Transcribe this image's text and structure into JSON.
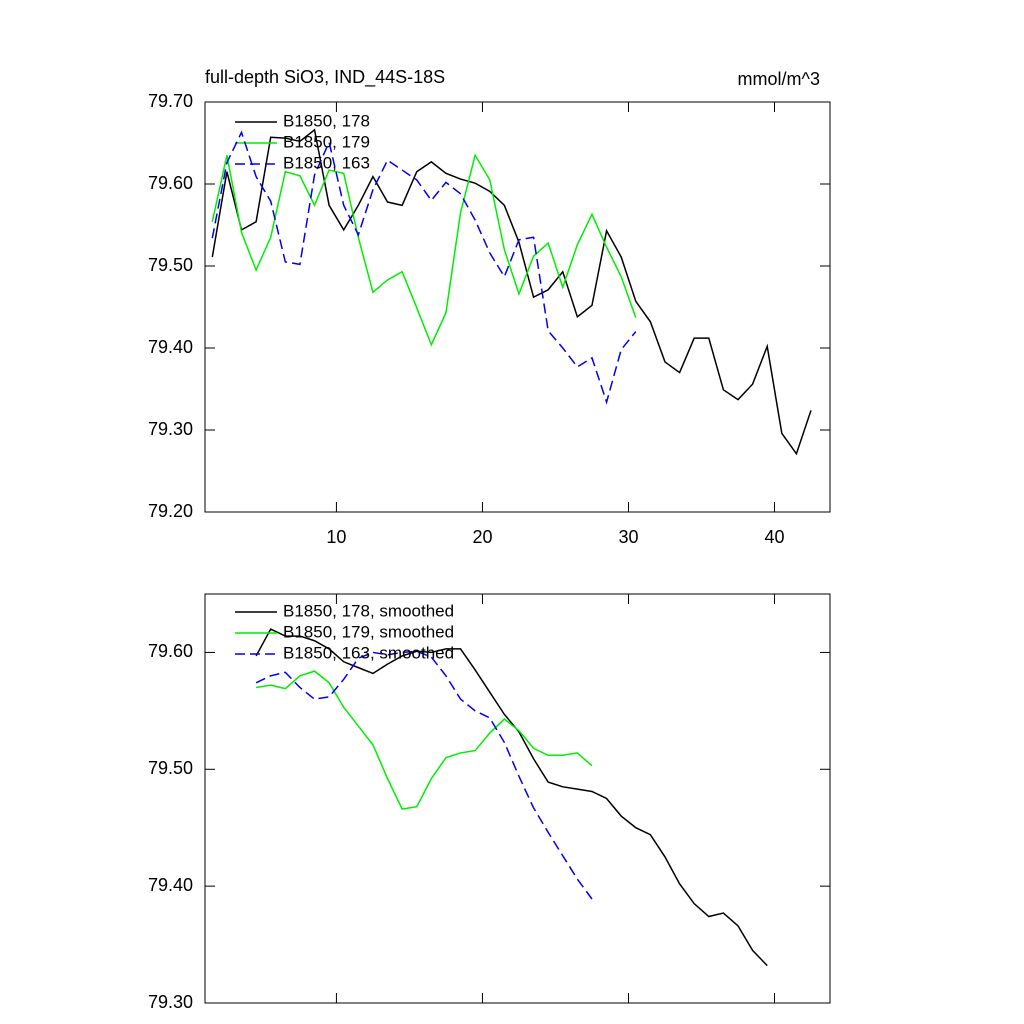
{
  "chart_data": [
    {
      "type": "line",
      "title": "full-depth SiO3, IND_44S-18S",
      "units": "mmol/m^3",
      "xlim": [
        1,
        43.8
      ],
      "xticks": [
        10,
        20,
        30,
        40
      ],
      "ylim": [
        79.2,
        79.7
      ],
      "yticks": [
        {
          "value": 79.2,
          "label": "79.20"
        },
        {
          "value": 79.3,
          "label": "79.30"
        },
        {
          "value": 79.4,
          "label": "79.40"
        },
        {
          "value": 79.5,
          "label": "79.50"
        },
        {
          "value": 79.6,
          "label": "79.60"
        },
        {
          "value": 79.7,
          "label": "79.70"
        }
      ],
      "series": [
        {
          "name": "B1850, 178",
          "color": "#000000",
          "dash": false,
          "x": [
            1.5,
            2.5,
            3.5,
            4.5,
            5.5,
            6.5,
            7.5,
            8.5,
            9.5,
            10.5,
            11.5,
            12.5,
            13.5,
            14.5,
            15.5,
            16.5,
            17.5,
            18.5,
            19.5,
            20.5,
            21.5,
            22.5,
            23.5,
            24.5,
            25.5,
            26.5,
            27.5,
            28.5,
            29.5,
            30.5,
            31.5,
            32.5,
            33.5,
            34.5,
            35.5,
            36.5,
            37.5,
            38.5,
            39.5,
            40.5,
            41.5,
            42.5
          ],
          "values": [
            79.511,
            79.615,
            79.544,
            79.554,
            79.657,
            79.656,
            79.652,
            79.666,
            79.574,
            79.544,
            79.574,
            79.609,
            79.578,
            79.574,
            79.615,
            79.627,
            79.613,
            79.606,
            79.601,
            79.591,
            79.574,
            79.529,
            79.462,
            79.471,
            79.493,
            79.438,
            79.452,
            79.543,
            79.511,
            79.457,
            79.432,
            79.383,
            79.37,
            79.412,
            79.412,
            79.349,
            79.337,
            79.356,
            79.402,
            79.296,
            79.271,
            79.324
          ]
        },
        {
          "name": "B1850, 179",
          "color": "#00ee00",
          "dash": false,
          "x": [
            1.5,
            2.5,
            3.5,
            4.5,
            5.5,
            6.5,
            7.5,
            8.5,
            9.5,
            10.5,
            11.5,
            12.5,
            13.5,
            14.5,
            15.5,
            16.5,
            17.5,
            18.5,
            19.5,
            20.5,
            21.5,
            22.5,
            23.5,
            24.5,
            25.5,
            26.5,
            27.5,
            28.5,
            29.5,
            30.5
          ],
          "values": [
            79.554,
            79.635,
            79.541,
            79.495,
            79.535,
            79.615,
            79.61,
            79.574,
            79.617,
            79.613,
            79.535,
            79.468,
            79.483,
            79.493,
            79.449,
            79.404,
            79.443,
            79.565,
            79.635,
            79.605,
            79.52,
            79.466,
            79.512,
            79.528,
            79.474,
            79.526,
            79.563,
            79.523,
            79.487,
            79.437
          ]
        },
        {
          "name": "B1850, 163",
          "color": "#0000ee",
          "dash": true,
          "x": [
            1.5,
            2.5,
            3.5,
            4.5,
            5.5,
            6.5,
            7.5,
            8.5,
            9.5,
            10.5,
            11.5,
            12.5,
            13.5,
            14.5,
            15.5,
            16.5,
            17.5,
            18.5,
            19.5,
            20.5,
            21.5,
            22.5,
            23.5,
            24.5,
            25.5,
            26.5,
            27.5,
            28.5,
            29.5,
            30.5
          ],
          "values": [
            79.534,
            79.626,
            79.663,
            79.609,
            79.579,
            79.505,
            79.502,
            79.611,
            79.651,
            79.574,
            79.538,
            79.593,
            79.629,
            79.617,
            79.605,
            79.58,
            79.602,
            79.588,
            79.556,
            79.516,
            79.487,
            79.532,
            79.535,
            79.421,
            79.4,
            79.377,
            79.388,
            79.334,
            79.398,
            79.42
          ]
        }
      ]
    },
    {
      "type": "line",
      "xlim": [
        1,
        43.8
      ],
      "ylim": [
        79.3,
        79.65
      ],
      "yticks": [
        {
          "value": 79.3,
          "label": "79.30"
        },
        {
          "value": 79.4,
          "label": "79.40"
        },
        {
          "value": 79.5,
          "label": "79.50"
        },
        {
          "value": 79.6,
          "label": "79.60"
        }
      ],
      "series": [
        {
          "name": "B1850, 178, smoothed",
          "color": "#000000",
          "dash": false,
          "x": [
            4.5,
            5.5,
            6.5,
            7.5,
            8.5,
            9.5,
            10.5,
            11.5,
            12.5,
            13.5,
            14.5,
            15.5,
            16.5,
            17.5,
            18.5,
            19.5,
            20.5,
            21.5,
            22.5,
            23.5,
            24.5,
            25.5,
            26.5,
            27.5,
            28.5,
            29.5,
            30.5,
            31.5,
            32.5,
            33.5,
            34.5,
            35.5,
            36.5,
            37.5,
            38.5,
            39.5
          ],
          "values": [
            79.597,
            79.62,
            79.614,
            79.614,
            79.61,
            79.603,
            79.592,
            79.587,
            79.582,
            79.59,
            79.597,
            79.601,
            79.6,
            79.603,
            79.603,
            79.585,
            79.566,
            79.547,
            79.532,
            79.509,
            79.489,
            79.485,
            79.483,
            79.481,
            79.475,
            79.46,
            79.45,
            79.444,
            79.425,
            79.402,
            79.385,
            79.374,
            79.377,
            79.366,
            79.345,
            79.332
          ]
        },
        {
          "name": "B1850, 179, smoothed",
          "color": "#00ee00",
          "dash": false,
          "x": [
            4.5,
            5.5,
            6.5,
            7.5,
            8.5,
            9.5,
            10.5,
            11.5,
            12.5,
            13.5,
            14.5,
            15.5,
            16.5,
            17.5,
            18.5,
            19.5,
            20.5,
            21.5,
            22.5,
            23.5,
            24.5,
            25.5,
            26.5,
            27.5
          ],
          "values": [
            79.57,
            79.572,
            79.569,
            79.58,
            79.584,
            79.574,
            79.553,
            79.537,
            79.521,
            79.492,
            79.466,
            79.468,
            79.492,
            79.51,
            79.514,
            79.516,
            79.531,
            79.543,
            79.533,
            79.518,
            79.512,
            79.512,
            79.514,
            79.503
          ]
        },
        {
          "name": "B1850, 163, smoothed",
          "color": "#0000ee",
          "dash": true,
          "x": [
            4.5,
            5.5,
            6.5,
            7.5,
            8.5,
            9.5,
            10.5,
            11.5,
            12.5,
            13.5,
            14.5,
            15.5,
            16.5,
            17.5,
            18.5,
            19.5,
            20.5,
            21.5,
            22.5,
            23.5,
            24.5,
            25.5,
            26.5,
            27.5
          ],
          "values": [
            79.574,
            79.58,
            79.583,
            79.57,
            79.56,
            79.562,
            79.577,
            79.595,
            79.6,
            79.598,
            79.6,
            79.601,
            79.596,
            79.58,
            79.56,
            79.55,
            79.544,
            79.523,
            79.494,
            79.467,
            79.446,
            79.426,
            79.406,
            79.389
          ]
        }
      ]
    }
  ]
}
